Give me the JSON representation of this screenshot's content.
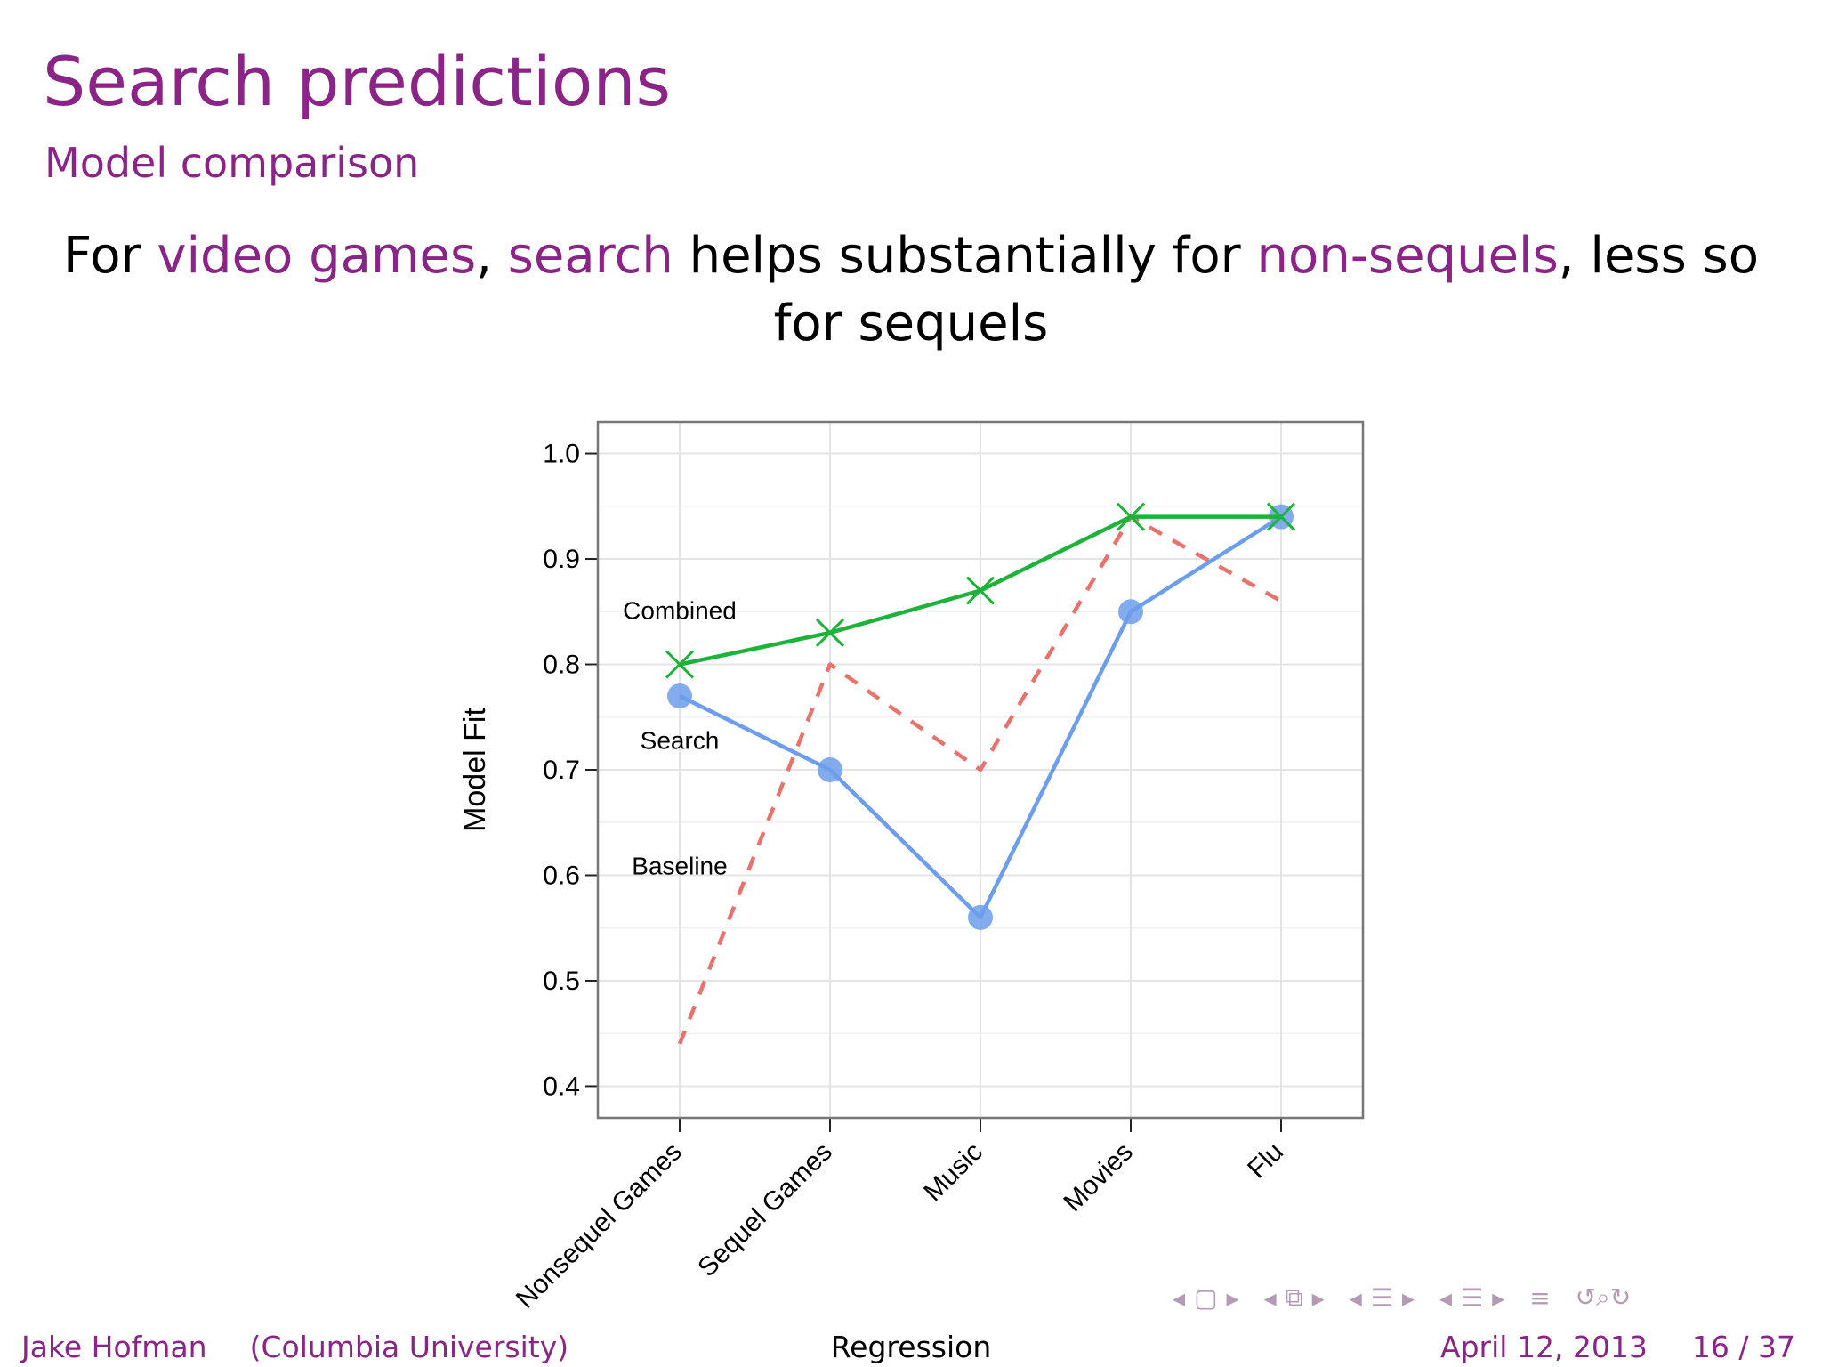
{
  "slide": {
    "title": "Search predictions",
    "subtitle": "Model comparison",
    "headline": {
      "p1": "For ",
      "h1": "video games",
      "p2": ", ",
      "h2": "search",
      "p3": " helps substantially for ",
      "h3": "non-sequels",
      "p4": ", less so",
      "p5": "for sequels"
    },
    "highlight_color": "#8b2487"
  },
  "chart_data": {
    "type": "line",
    "categories": [
      "Nonsequel Games",
      "Sequel Games",
      "Music",
      "Movies",
      "Flu"
    ],
    "ylabel": "Model Fit",
    "xlabel": "",
    "ylim": [
      0.37,
      1.03
    ],
    "yticks": [
      "1.0",
      "0.9",
      "0.8",
      "0.7",
      "0.6",
      "0.5",
      "0.4"
    ],
    "grid": true,
    "series": [
      {
        "name": "Combined",
        "values": [
          0.8,
          0.83,
          0.87,
          0.94,
          0.94
        ],
        "color": "#1db33a",
        "marker": "x",
        "style": "solid"
      },
      {
        "name": "Search",
        "values": [
          0.77,
          0.7,
          0.56,
          0.85,
          0.94
        ],
        "color": "#6d9eeb",
        "marker": "circle",
        "style": "solid"
      },
      {
        "name": "Baseline",
        "values": [
          0.44,
          0.8,
          0.7,
          0.94,
          0.86
        ],
        "color": "#e8736c",
        "marker": "none",
        "style": "dashed"
      }
    ]
  },
  "nav": {
    "left_arrow": "◂",
    "right_arrow": "▸",
    "frame_icon": "▢",
    "frames_icon": "⧉",
    "list_icon": "☰",
    "align_icon": "≡",
    "search_icon": "↺⌕↻"
  },
  "footer": {
    "author": "Jake Hofman",
    "institution": "(Columbia University)",
    "section": "Regression",
    "date": "April 12, 2013",
    "page": "16 / 37"
  }
}
